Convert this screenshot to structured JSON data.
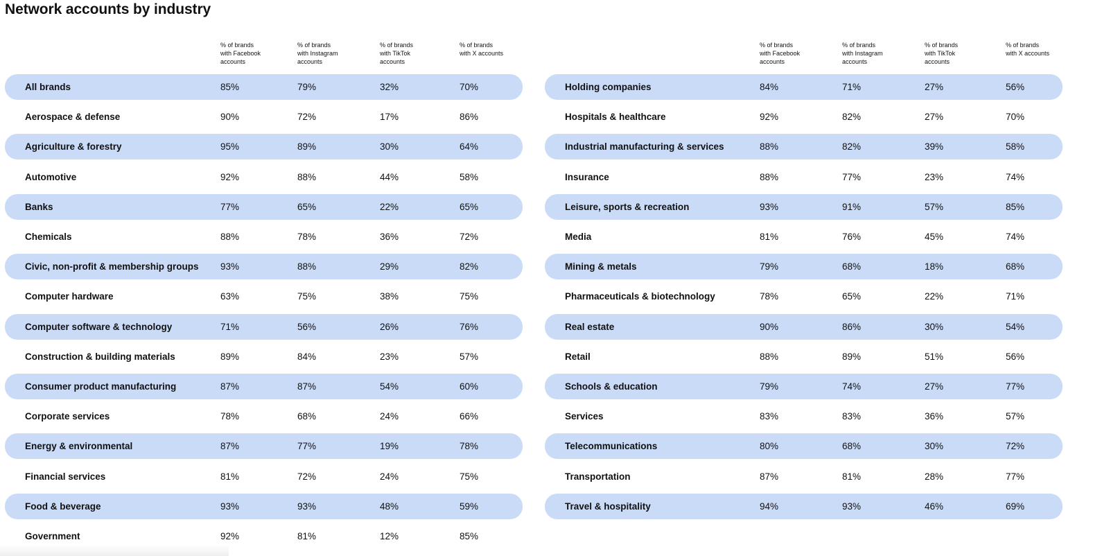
{
  "page": {
    "title": "Network accounts by industry"
  },
  "colors": {
    "row_shade": "#c9dbf7",
    "text": "#111111",
    "background": "#ffffff"
  },
  "chart_data": {
    "type": "table",
    "title": "Network accounts by industry",
    "columns": [
      "% of brands with Facebook accounts",
      "% of brands with Instagram accounts",
      "% of brands with TikTok accounts",
      "% of brands with X accounts"
    ],
    "column_header_lines": [
      [
        "% of brands",
        "with Facebook",
        "accounts"
      ],
      [
        "% of brands",
        "with Instagram",
        "accounts"
      ],
      [
        "% of brands",
        "with TikTok",
        "accounts"
      ],
      [
        "% of brands",
        "with X accounts"
      ]
    ],
    "tables": [
      {
        "rows": [
          {
            "industry": "All brands",
            "facebook": "85%",
            "instagram": "79%",
            "tiktok": "32%",
            "x": "70%"
          },
          {
            "industry": "Aerospace & defense",
            "facebook": "90%",
            "instagram": "72%",
            "tiktok": "17%",
            "x": "86%"
          },
          {
            "industry": "Agriculture & forestry",
            "facebook": "95%",
            "instagram": "89%",
            "tiktok": "30%",
            "x": "64%"
          },
          {
            "industry": "Automotive",
            "facebook": "92%",
            "instagram": "88%",
            "tiktok": "44%",
            "x": "58%"
          },
          {
            "industry": "Banks",
            "facebook": "77%",
            "instagram": "65%",
            "tiktok": "22%",
            "x": "65%"
          },
          {
            "industry": "Chemicals",
            "facebook": "88%",
            "instagram": "78%",
            "tiktok": "36%",
            "x": "72%"
          },
          {
            "industry": "Civic, non-profit & membership groups",
            "facebook": "93%",
            "instagram": "88%",
            "tiktok": "29%",
            "x": "82%"
          },
          {
            "industry": "Computer hardware",
            "facebook": "63%",
            "instagram": "75%",
            "tiktok": "38%",
            "x": "75%"
          },
          {
            "industry": "Computer software & technology",
            "facebook": "71%",
            "instagram": "56%",
            "tiktok": "26%",
            "x": "76%"
          },
          {
            "industry": "Construction & building materials",
            "facebook": "89%",
            "instagram": "84%",
            "tiktok": "23%",
            "x": "57%"
          },
          {
            "industry": "Consumer product manufacturing",
            "facebook": "87%",
            "instagram": "87%",
            "tiktok": "54%",
            "x": "60%"
          },
          {
            "industry": "Corporate services",
            "facebook": "78%",
            "instagram": "68%",
            "tiktok": "24%",
            "x": "66%"
          },
          {
            "industry": "Energy & environmental",
            "facebook": "87%",
            "instagram": "77%",
            "tiktok": "19%",
            "x": "78%"
          },
          {
            "industry": "Financial services",
            "facebook": "81%",
            "instagram": "72%",
            "tiktok": "24%",
            "x": "75%"
          },
          {
            "industry": "Food & beverage",
            "facebook": "93%",
            "instagram": "93%",
            "tiktok": "48%",
            "x": "59%"
          },
          {
            "industry": "Government",
            "facebook": "92%",
            "instagram": "81%",
            "tiktok": "12%",
            "x": "85%"
          }
        ]
      },
      {
        "rows": [
          {
            "industry": "Holding companies",
            "facebook": "84%",
            "instagram": "71%",
            "tiktok": "27%",
            "x": "56%"
          },
          {
            "industry": "Hospitals & healthcare",
            "facebook": "92%",
            "instagram": "82%",
            "tiktok": "27%",
            "x": "70%"
          },
          {
            "industry": "Industrial manufacturing & services",
            "facebook": "88%",
            "instagram": "82%",
            "tiktok": "39%",
            "x": "58%"
          },
          {
            "industry": "Insurance",
            "facebook": "88%",
            "instagram": "77%",
            "tiktok": "23%",
            "x": "74%"
          },
          {
            "industry": "Leisure, sports & recreation",
            "facebook": "93%",
            "instagram": "91%",
            "tiktok": "57%",
            "x": "85%"
          },
          {
            "industry": "Media",
            "facebook": "81%",
            "instagram": "76%",
            "tiktok": "45%",
            "x": "74%"
          },
          {
            "industry": "Mining & metals",
            "facebook": "79%",
            "instagram": "68%",
            "tiktok": "18%",
            "x": "68%"
          },
          {
            "industry": "Pharmaceuticals & biotechnology",
            "facebook": "78%",
            "instagram": "65%",
            "tiktok": "22%",
            "x": "71%"
          },
          {
            "industry": "Real estate",
            "facebook": "90%",
            "instagram": "86%",
            "tiktok": "30%",
            "x": "54%"
          },
          {
            "industry": "Retail",
            "facebook": "88%",
            "instagram": "89%",
            "tiktok": "51%",
            "x": "56%"
          },
          {
            "industry": "Schools & education",
            "facebook": "79%",
            "instagram": "74%",
            "tiktok": "27%",
            "x": "77%"
          },
          {
            "industry": "Services",
            "facebook": "83%",
            "instagram": "83%",
            "tiktok": "36%",
            "x": "57%"
          },
          {
            "industry": "Telecommunications",
            "facebook": "80%",
            "instagram": "68%",
            "tiktok": "30%",
            "x": "72%"
          },
          {
            "industry": "Transportation",
            "facebook": "87%",
            "instagram": "81%",
            "tiktok": "28%",
            "x": "77%"
          },
          {
            "industry": "Travel & hospitality",
            "facebook": "94%",
            "instagram": "93%",
            "tiktok": "46%",
            "x": "69%"
          }
        ]
      }
    ]
  }
}
